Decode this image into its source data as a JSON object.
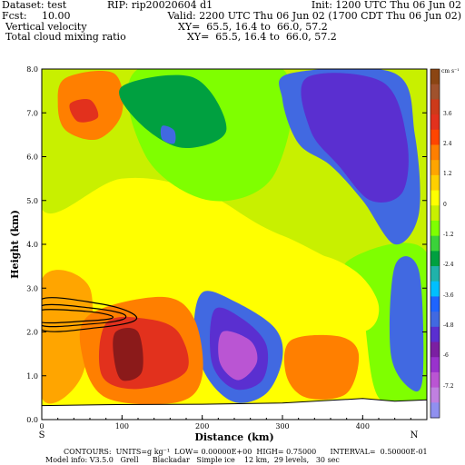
{
  "header": {
    "dataset": "Dataset: test",
    "rip": "RIP: rip20020604 d1",
    "init": "Init: 1200 UTC Thu 06 Jun 02",
    "fcst_label": "Fcst:",
    "fcst_value": "10.00",
    "valid": "Valid: 2200 UTC Thu 06 Jun 02 (1700 CDT Thu 06 Jun 02)",
    "field1": "Vertical velocity",
    "xy1": "XY=  65.5, 16.4 to  66.0, 57.2",
    "field2": "Total cloud mixing ratio",
    "xy2": "XY=  65.5, 16.4 to  66.0, 57.2"
  },
  "footer": {
    "line1": "CONTOURS:  UNITS=g kg⁻¹  LOW= 0.00000E+00  HIGH= 0.75000      INTERVAL=  0.50000E-01",
    "line2": "Model info: V3.5.0   Grell      Blackadar   Simple ice    12 km,  29 levels,   30 sec"
  },
  "chart_data": {
    "type": "heatmap",
    "xlabel": "Distance (km)",
    "ylabel": "Height (km)",
    "xlim": [
      0,
      480
    ],
    "ylim": [
      0,
      8
    ],
    "x_ticks": [
      "0",
      "100",
      "200",
      "300",
      "400"
    ],
    "y_ticks": [
      "0.0",
      "1.0",
      "2.0",
      "3.0",
      "4.0",
      "5.0",
      "6.0",
      "7.0",
      "8.0"
    ],
    "x_end_labels": {
      "left": "S",
      "right": "N"
    },
    "colorbar": {
      "units": "cm s⁻¹",
      "labels": [
        "3.6",
        "2.4",
        "1.2",
        "0",
        "-1.2",
        "-2.4",
        "-3.6",
        "-4.8",
        "-6",
        "-7.2"
      ],
      "colors": [
        "#8b4513",
        "#a0522d",
        "#cd3a1a",
        "#e2311d",
        "#ff4500",
        "#ff7f00",
        "#ffa500",
        "#ffd000",
        "#ffff00",
        "#c8f000",
        "#7fff00",
        "#3ad23a",
        "#00a040",
        "#20b2aa",
        "#00bfff",
        "#1e64ff",
        "#4169e1",
        "#5a2fd0",
        "#7b1fa2",
        "#9932cc",
        "#ba55d3",
        "#c080e0",
        "#9090f0"
      ]
    },
    "fill_regions": [
      {
        "level": -3.6,
        "points": [
          [
            310,
            7.9
          ],
          [
            440,
            7.9
          ],
          [
            465,
            6.5
          ],
          [
            470,
            4.7
          ],
          [
            440,
            4.0
          ],
          [
            400,
            5.0
          ],
          [
            360,
            5.8
          ],
          [
            320,
            6.3
          ],
          [
            300,
            7.3
          ]
        ]
      },
      {
        "level": -4.8,
        "points": [
          [
            330,
            7.8
          ],
          [
            425,
            7.7
          ],
          [
            455,
            6.4
          ],
          [
            450,
            5.2
          ],
          [
            410,
            5.0
          ],
          [
            370,
            5.8
          ],
          [
            335,
            6.6
          ]
        ]
      },
      {
        "level": -3.6,
        "points": [
          [
            200,
            2.9
          ],
          [
            240,
            2.7
          ],
          [
            290,
            2.1
          ],
          [
            300,
            1.4
          ],
          [
            280,
            0.6
          ],
          [
            240,
            0.4
          ],
          [
            205,
            1.0
          ],
          [
            190,
            2.0
          ]
        ]
      },
      {
        "level": -4.8,
        "points": [
          [
            215,
            2.5
          ],
          [
            250,
            2.3
          ],
          [
            280,
            1.7
          ],
          [
            275,
            0.9
          ],
          [
            240,
            0.7
          ],
          [
            212,
            1.3
          ]
        ]
      },
      {
        "level": -6,
        "points": [
          [
            225,
            2.0
          ],
          [
            260,
            1.8
          ],
          [
            268,
            1.3
          ],
          [
            245,
            0.9
          ],
          [
            222,
            1.3
          ]
        ]
      },
      {
        "level": 1.2,
        "points": [
          [
            60,
            2.4
          ],
          [
            150,
            2.8
          ],
          [
            190,
            2.3
          ],
          [
            200,
            1.0
          ],
          [
            170,
            0.4
          ],
          [
            80,
            0.5
          ],
          [
            50,
            1.5
          ]
        ]
      },
      {
        "level": 2.4,
        "points": [
          [
            80,
            2.2
          ],
          [
            130,
            2.3
          ],
          [
            170,
            2.0
          ],
          [
            180,
            1.1
          ],
          [
            120,
            0.7
          ],
          [
            75,
            1.0
          ]
        ]
      },
      {
        "level": 3.6,
        "points": [
          [
            92,
            2.0
          ],
          [
            120,
            2.0
          ],
          [
            125,
            1.1
          ],
          [
            100,
            0.9
          ],
          [
            90,
            1.4
          ]
        ]
      },
      {
        "level": 1.2,
        "points": [
          [
            30,
            7.8
          ],
          [
            90,
            7.9
          ],
          [
            100,
            7.0
          ],
          [
            70,
            6.4
          ],
          [
            30,
            6.6
          ],
          [
            20,
            7.2
          ]
        ]
      },
      {
        "level": 2.4,
        "points": [
          [
            35,
            7.2
          ],
          [
            60,
            7.3
          ],
          [
            70,
            6.9
          ],
          [
            45,
            6.8
          ]
        ]
      },
      {
        "level": -2.4,
        "points": [
          [
            100,
            7.6
          ],
          [
            190,
            7.8
          ],
          [
            230,
            6.6
          ],
          [
            175,
            6.2
          ],
          [
            120,
            6.8
          ]
        ]
      },
      {
        "level": -3.6,
        "points": [
          [
            150,
            6.7
          ],
          [
            165,
            6.6
          ],
          [
            165,
            6.3
          ],
          [
            150,
            6.4
          ]
        ]
      },
      {
        "level": 1.2,
        "points": [
          [
            310,
            1.8
          ],
          [
            370,
            1.9
          ],
          [
            395,
            1.5
          ],
          [
            380,
            0.6
          ],
          [
            330,
            0.5
          ],
          [
            305,
            1.0
          ]
        ]
      },
      {
        "level": -3.6,
        "points": [
          [
            440,
            3.5
          ],
          [
            470,
            3.4
          ],
          [
            475,
            1.0
          ],
          [
            460,
            0.7
          ],
          [
            435,
            1.5
          ]
        ]
      },
      {
        "level": 0,
        "points": [
          [
            250,
            3.5
          ],
          [
            330,
            3.8
          ],
          [
            390,
            3.4
          ],
          [
            420,
            2.6
          ],
          [
            400,
            2.0
          ],
          [
            320,
            2.2
          ],
          [
            260,
            2.8
          ]
        ]
      }
    ],
    "cloud_mixing_ratio_contours": [
      {
        "value": 0.05,
        "points": [
          [
            0,
            2.75
          ],
          [
            70,
            2.65
          ],
          [
            110,
            2.45
          ],
          [
            115,
            2.25
          ],
          [
            70,
            2.1
          ],
          [
            0,
            2.05
          ]
        ]
      },
      {
        "value": 0.15,
        "points": [
          [
            0,
            2.6
          ],
          [
            60,
            2.55
          ],
          [
            100,
            2.42
          ],
          [
            100,
            2.28
          ],
          [
            60,
            2.18
          ],
          [
            0,
            2.15
          ]
        ]
      },
      {
        "value": 0.25,
        "points": [
          [
            0,
            2.5
          ],
          [
            55,
            2.47
          ],
          [
            85,
            2.38
          ],
          [
            85,
            2.3
          ],
          [
            55,
            2.25
          ],
          [
            0,
            2.22
          ]
        ]
      }
    ],
    "terrain": [
      [
        0,
        0.32
      ],
      [
        80,
        0.34
      ],
      [
        200,
        0.35
      ],
      [
        300,
        0.38
      ],
      [
        360,
        0.44
      ],
      [
        400,
        0.48
      ],
      [
        440,
        0.42
      ],
      [
        480,
        0.45
      ]
    ]
  }
}
